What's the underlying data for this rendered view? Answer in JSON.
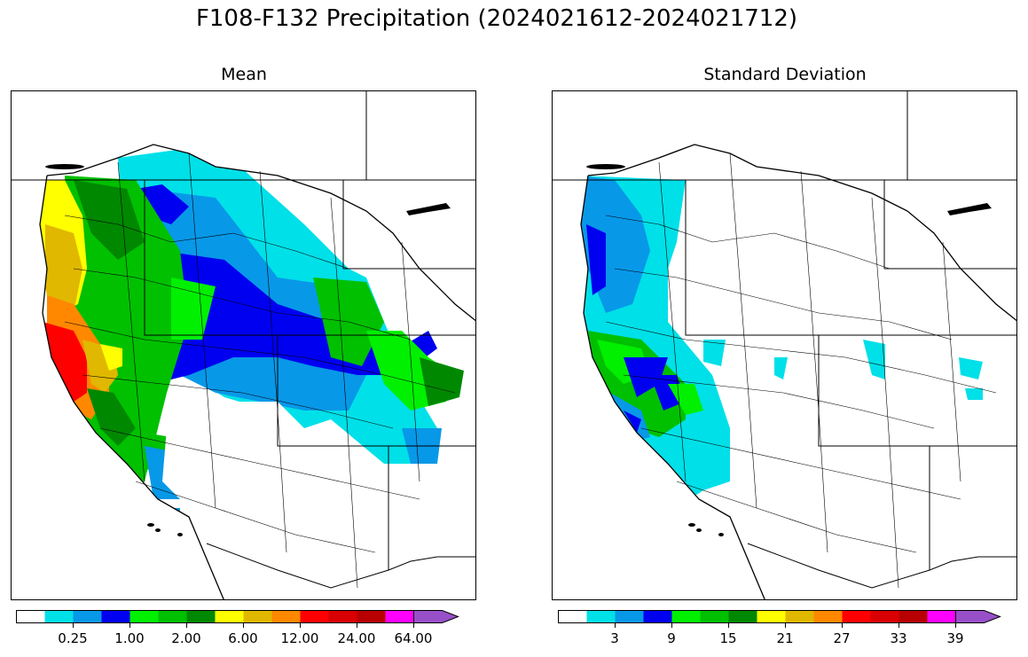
{
  "title": "F108-F132 Precipitation (2024021612-2024021712)",
  "panels": [
    {
      "title": "Mean",
      "colorbar": {
        "colors": [
          "#ffffff",
          "#00e0e8",
          "#0898e8",
          "#0000f0",
          "#00f000",
          "#00c000",
          "#008800",
          "#ffff00",
          "#e0b800",
          "#ff8800",
          "#ff0000",
          "#d80000",
          "#b80000",
          "#ff00ff",
          "#9850c8"
        ],
        "extend": "max",
        "tick_labels": [
          "0.25",
          "1.00",
          "2.00",
          "6.00",
          "12.00",
          "24.00",
          "64.00"
        ]
      }
    },
    {
      "title": "Standard Deviation",
      "colorbar": {
        "colors": [
          "#ffffff",
          "#00e0e8",
          "#0898e8",
          "#0000f0",
          "#00f000",
          "#00c000",
          "#008800",
          "#ffff00",
          "#e0b800",
          "#ff8800",
          "#ff0000",
          "#d80000",
          "#b80000",
          "#ff00ff",
          "#9850c8"
        ],
        "extend": "max",
        "tick_labels": [
          "3",
          "9",
          "15",
          "21",
          "27",
          "33",
          "39"
        ]
      }
    }
  ]
}
